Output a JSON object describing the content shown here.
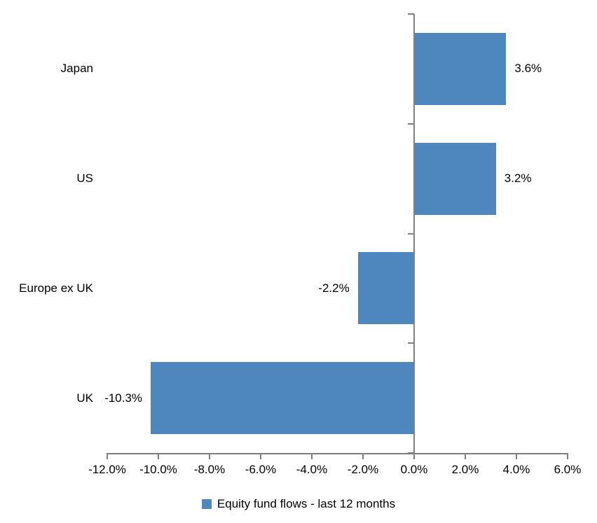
{
  "chart_data": {
    "type": "bar",
    "orientation": "horizontal",
    "title": "",
    "categories": [
      "Japan",
      "US",
      "Europe ex UK",
      "UK"
    ],
    "series": [
      {
        "name": "Equity fund flows - last 12 months",
        "values": [
          3.6,
          3.2,
          -2.2,
          -10.3
        ]
      }
    ],
    "data_labels": [
      "3.6%",
      "3.2%",
      "-2.2%",
      "-10.3%"
    ],
    "x_axis": {
      "min": -12,
      "max": 6,
      "step": 2,
      "tick_labels": [
        "-12.0%",
        "-10.0%",
        "-8.0%",
        "-6.0%",
        "-4.0%",
        "-2.0%",
        "0.0%",
        "2.0%",
        "4.0%",
        "6.0%"
      ]
    },
    "y_axis": {
      "zero_line": true
    },
    "legend": {
      "position": "bottom",
      "label": "Equity fund flows - last 12 months"
    },
    "grid": false,
    "colors": {
      "bar": "#4E86BE",
      "axis": "#7F7F7F",
      "text": "#000000",
      "background": "#FFFFFF"
    }
  }
}
